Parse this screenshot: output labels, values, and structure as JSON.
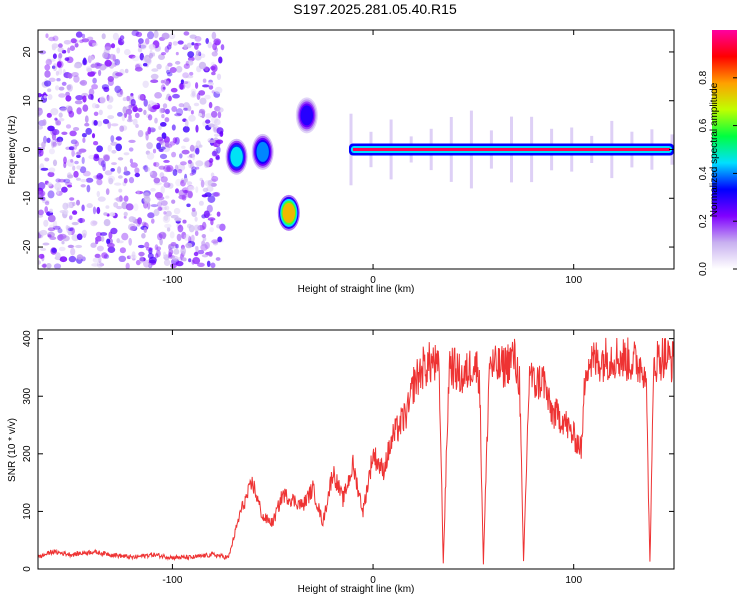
{
  "title": "S197.2025.281.05.40.R15",
  "colors": {
    "snr_line": "#ee3333",
    "frame": "#000000",
    "background": "#ffffff"
  },
  "chart_data": [
    {
      "type": "heatmap",
      "name": "spectrogram",
      "xlabel": "Height of straight line (km)",
      "ylabel": "Frequency (Hz)",
      "xlim": [
        -167,
        150
      ],
      "ylim": [
        -24.5,
        24.5
      ],
      "xticks": [
        -100,
        0,
        100
      ],
      "xtick_labels": [
        "-100",
        "0",
        "100"
      ],
      "yticks": [
        -20,
        -10,
        0,
        10,
        20
      ],
      "ytick_labels": [
        "-20",
        "-10",
        "0",
        "10",
        "20"
      ],
      "colorbar": {
        "label": "Normalized spectral amplitude",
        "range": [
          0,
          1
        ],
        "ticks": [
          0.0,
          0.2,
          0.4,
          0.6,
          0.8
        ],
        "tick_labels": [
          "0.0",
          "0.2",
          "0.4",
          "0.6",
          "0.8"
        ],
        "colormap": [
          "#ffffff",
          "#c8b0f0",
          "#8000ff",
          "#0000ff",
          "#00e0ff",
          "#00ff40",
          "#c0ff00",
          "#ffa000",
          "#ff0000",
          "#ff00a0"
        ]
      },
      "features": [
        {
          "description": "scattered noise",
          "x_range": [
            -167,
            -75
          ],
          "y_range": [
            -24,
            24
          ],
          "amplitude": 0.15
        },
        {
          "description": "blob",
          "x": -68,
          "y": -1.5,
          "amplitude": 0.45
        },
        {
          "description": "blob",
          "x": -55,
          "y": -0.5,
          "amplitude": 0.4
        },
        {
          "description": "blob",
          "x": -42,
          "y": -13,
          "amplitude": 0.75
        },
        {
          "description": "blob",
          "x": -33,
          "y": 7,
          "amplitude": 0.3
        },
        {
          "description": "carrier line",
          "x_range": [
            -12,
            150
          ],
          "y": 0,
          "amplitude": 0.95
        }
      ]
    },
    {
      "type": "line",
      "name": "snr",
      "xlabel": "Height of straight line (km)",
      "ylabel": "SNR (10 * v/v)",
      "xlim": [
        -167,
        150
      ],
      "ylim": [
        0,
        415
      ],
      "xticks": [
        -100,
        0,
        100
      ],
      "xtick_labels": [
        "-100",
        "0",
        "100"
      ],
      "yticks": [
        0,
        100,
        200,
        300,
        400
      ],
      "ytick_labels": [
        "0",
        "100",
        "200",
        "300",
        "400"
      ],
      "x": [
        -167,
        -160,
        -150,
        -140,
        -130,
        -120,
        -110,
        -100,
        -90,
        -80,
        -72,
        -66,
        -60,
        -55,
        -50,
        -45,
        -40,
        -35,
        -30,
        -25,
        -20,
        -15,
        -10,
        -5,
        0,
        5,
        10,
        15,
        18,
        20,
        25,
        30,
        33,
        35,
        38,
        40,
        45,
        50,
        53,
        55,
        58,
        60,
        65,
        70,
        73,
        75,
        78,
        80,
        85,
        88,
        90,
        95,
        98,
        100,
        104,
        106,
        110,
        120,
        130,
        136,
        138,
        140,
        145,
        150
      ],
      "values": [
        20,
        30,
        25,
        30,
        25,
        20,
        25,
        20,
        20,
        25,
        20,
        100,
        150,
        90,
        80,
        130,
        120,
        110,
        140,
        80,
        170,
        120,
        180,
        100,
        200,
        170,
        230,
        260,
        280,
        320,
        350,
        360,
        340,
        10,
        360,
        350,
        330,
        360,
        340,
        10,
        360,
        350,
        350,
        370,
        330,
        10,
        350,
        320,
        330,
        280,
        270,
        260,
        240,
        230,
        210,
        360,
        360,
        370,
        360,
        350,
        10,
        360,
        370,
        360
      ]
    }
  ]
}
